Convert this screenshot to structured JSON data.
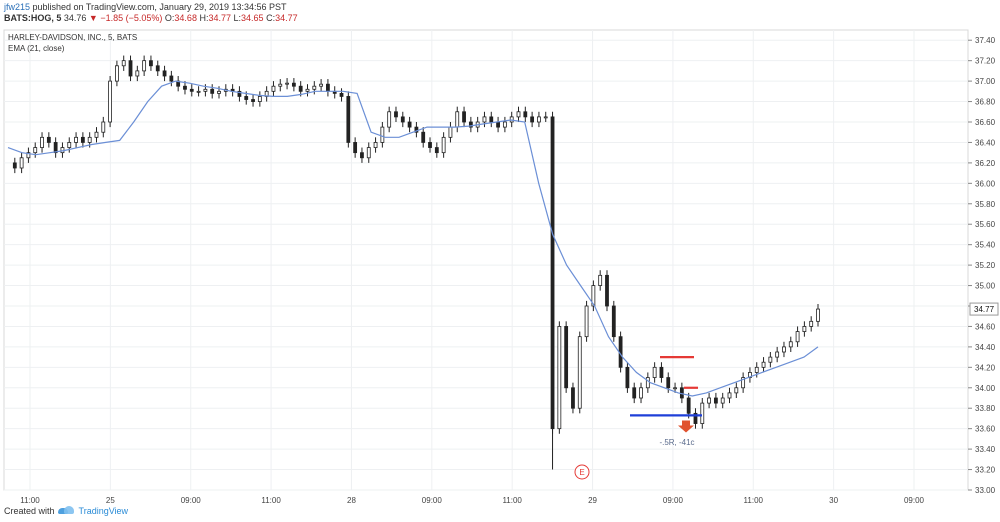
{
  "header": {
    "user": "jfw215",
    "published_text": " published on TradingView.com, January 29, 2019 13:34:56 PST",
    "symbol": "BATS:HOG, 5",
    "last": "34.76",
    "change_arrow": "▼",
    "change": "−1.85 (−5.05%)",
    "ohlc": [
      {
        "label": "O:",
        "value": "34.68"
      },
      {
        "label": "H:",
        "value": "34.77"
      },
      {
        "label": "L:",
        "value": "34.65"
      },
      {
        "label": "C:",
        "value": "34.77"
      }
    ]
  },
  "footer": {
    "created_with": "Created with",
    "brand": "TradingView"
  },
  "chart_data": {
    "type": "candlestick",
    "title": "HARLEY-DAVIDSON, INC., 5, BATS",
    "indicator": "EMA (21, close)",
    "x_ticks": [
      "11:00",
      "25",
      "09:00",
      "11:00",
      "28",
      "09:00",
      "11:00",
      "29",
      "09:00",
      "11:00",
      "30",
      "09:00"
    ],
    "y_ticks": [
      "33.00",
      "33.20",
      "33.40",
      "33.60",
      "33.80",
      "34.00",
      "34.20",
      "34.40",
      "34.60",
      "34.80",
      "35.00",
      "35.20",
      "35.40",
      "35.60",
      "35.80",
      "36.00",
      "36.20",
      "36.40",
      "36.60",
      "36.80",
      "37.00",
      "37.20",
      "37.40"
    ],
    "ylim": [
      33.0,
      37.5
    ],
    "last_price_label": "34.77",
    "price_path": [
      36.2,
      36.15,
      36.25,
      36.3,
      36.35,
      36.45,
      36.4,
      36.3,
      36.35,
      36.4,
      36.45,
      36.4,
      36.45,
      36.5,
      36.6,
      37.0,
      37.15,
      37.2,
      37.05,
      37.1,
      37.2,
      37.15,
      37.1,
      37.05,
      37.0,
      36.95,
      36.92,
      36.9,
      36.9,
      36.92,
      36.88,
      36.9,
      36.92,
      36.9,
      36.85,
      36.82,
      36.8,
      36.85,
      36.9,
      36.95,
      36.97,
      36.98,
      36.95,
      36.9,
      36.92,
      36.95,
      36.97,
      36.9,
      36.88,
      36.85,
      36.4,
      36.3,
      36.25,
      36.35,
      36.4,
      36.55,
      36.7,
      36.65,
      36.6,
      36.55,
      36.5,
      36.4,
      36.35,
      36.3,
      36.45,
      36.55,
      36.7,
      36.6,
      36.55,
      36.6,
      36.65,
      36.6,
      36.55,
      36.6,
      36.65,
      36.7,
      36.65,
      36.6,
      36.65,
      36.65,
      33.6,
      34.6,
      34.0,
      33.8,
      34.5,
      34.8,
      35.0,
      35.1,
      34.8,
      34.5,
      34.2,
      34.0,
      33.9,
      34.0,
      34.1,
      34.2,
      34.1,
      34.0,
      34.0,
      33.9,
      33.75,
      33.65,
      33.85,
      33.9,
      33.85,
      33.9,
      33.95,
      34.0,
      34.1,
      34.15,
      34.2,
      34.25,
      34.3,
      34.35,
      34.4,
      34.45,
      34.55,
      34.6,
      34.65,
      34.77
    ],
    "ema_path": [
      36.35,
      36.3,
      36.28,
      36.3,
      36.32,
      36.35,
      36.38,
      36.4,
      36.42,
      36.6,
      36.8,
      36.95,
      37.0,
      36.98,
      36.95,
      36.93,
      36.9,
      36.88,
      36.86,
      36.85,
      36.85,
      36.87,
      36.9,
      36.9,
      36.9,
      36.88,
      36.5,
      36.45,
      36.45,
      36.5,
      36.55,
      36.55,
      36.55,
      36.56,
      36.58,
      36.6,
      36.62,
      36.6,
      36.0,
      35.5,
      35.2,
      35.0,
      34.8,
      34.5,
      34.3,
      34.15,
      34.05,
      34.0,
      33.95,
      33.92,
      33.95,
      34.0,
      34.05,
      34.1,
      34.15,
      34.2,
      34.25,
      34.3,
      34.4
    ],
    "annotations": [
      {
        "type": "hline",
        "color": "#e53935",
        "y": 34.3
      },
      {
        "type": "hline",
        "color": "#e53935",
        "y": 34.0
      },
      {
        "type": "hline",
        "color": "#1e3fd8",
        "y": 33.73
      },
      {
        "type": "arrow-down",
        "color": "#e0522e",
        "y": 33.6
      },
      {
        "type": "text",
        "text": "-.5R, -41c",
        "y": 33.4
      },
      {
        "type": "event-marker",
        "text": "E"
      }
    ]
  }
}
